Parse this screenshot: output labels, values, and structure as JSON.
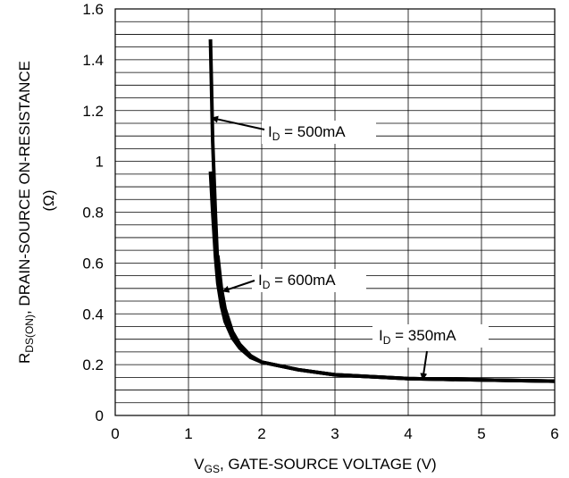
{
  "chart_data": {
    "type": "line",
    "xlim": [
      0,
      6
    ],
    "ylim": [
      0,
      1.6
    ],
    "x_ticks": [
      "0",
      "1",
      "2",
      "3",
      "4",
      "5",
      "6"
    ],
    "y_ticks": [
      "0",
      "0.2",
      "0.4",
      "0.6",
      "0.8",
      "1",
      "1.2",
      "1.4",
      "1.6"
    ],
    "x_grid_step": 1,
    "y_grid_step": 0.05,
    "xlabel": {
      "main": "V",
      "sub": "GS",
      "rest": ", GATE-SOURCE VOLTAGE (V)"
    },
    "ylabel": {
      "main": "R",
      "sub": "DS(ON)",
      "rest": ", DRAIN-SOURCE ON-RESISTANCE",
      "line2": "(Ω)"
    },
    "series": [
      {
        "name": "I_D = 500mA",
        "x": [
          1.3,
          1.33,
          1.37,
          1.4,
          1.45,
          1.5,
          1.6,
          1.7,
          1.85,
          2.0,
          2.5,
          3.0,
          4.0,
          5.0,
          6.0
        ],
        "y": [
          1.48,
          1.08,
          0.78,
          0.58,
          0.45,
          0.38,
          0.31,
          0.27,
          0.23,
          0.21,
          0.18,
          0.16,
          0.145,
          0.14,
          0.135
        ]
      },
      {
        "name": "I_D = 600mA",
        "x": [
          1.3,
          1.33,
          1.37,
          1.4,
          1.45,
          1.5,
          1.6,
          1.7,
          1.85,
          2.0,
          2.5,
          3.0,
          4.0,
          5.0,
          6.0
        ],
        "y": [
          0.96,
          0.8,
          0.62,
          0.52,
          0.43,
          0.37,
          0.305,
          0.265,
          0.228,
          0.21,
          0.18,
          0.16,
          0.145,
          0.14,
          0.135
        ]
      },
      {
        "name": "I_D = 350mA",
        "x": [
          1.4,
          1.45,
          1.5,
          1.6,
          1.7,
          1.85,
          2.0,
          2.5,
          3.0,
          4.0,
          5.0,
          6.0
        ],
        "y": [
          0.63,
          0.5,
          0.42,
          0.33,
          0.28,
          0.235,
          0.21,
          0.18,
          0.16,
          0.145,
          0.14,
          0.135
        ]
      }
    ],
    "annotations": [
      {
        "main": "I",
        "sub": "D",
        "rest": " = 500mA",
        "arrow_to": [
          1.33,
          1.17
        ]
      },
      {
        "main": "I",
        "sub": "D",
        "rest": " = 600mA",
        "arrow_to": [
          1.48,
          0.49
        ]
      },
      {
        "main": "I",
        "sub": "D",
        "rest": " = 350mA",
        "arrow_to": [
          4.2,
          0.145
        ]
      }
    ]
  }
}
